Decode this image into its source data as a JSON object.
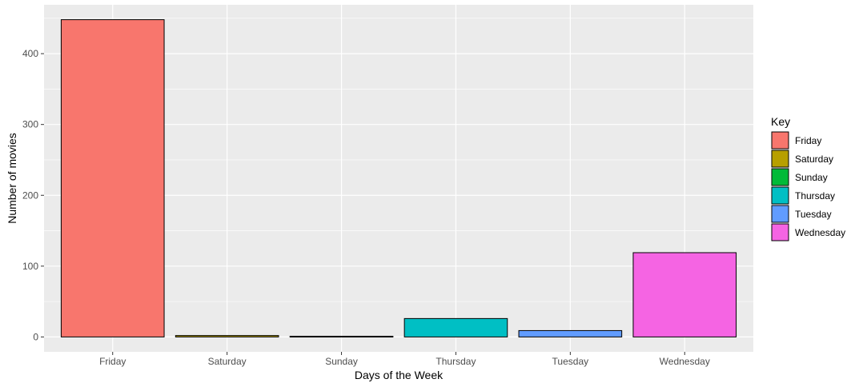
{
  "chart_data": {
    "type": "bar",
    "xlabel": "Days of the Week",
    "ylabel": "Number of movies",
    "categories": [
      "Friday",
      "Saturday",
      "Sunday",
      "Thursday",
      "Tuesday",
      "Wednesday"
    ],
    "values": [
      448,
      2,
      1,
      26,
      9,
      119
    ],
    "colors": [
      "#F8766D",
      "#B79F00",
      "#00BA38",
      "#00BFC4",
      "#619CFF",
      "#F564E3"
    ],
    "ylim": [
      -21,
      469
    ],
    "yticks": [
      0,
      100,
      200,
      300,
      400
    ],
    "grid": true,
    "panel_background": "#EBEBEB",
    "legend": {
      "title": "Key",
      "position": "right",
      "entries": [
        "Friday",
        "Saturday",
        "Sunday",
        "Thursday",
        "Tuesday",
        "Wednesday"
      ]
    }
  }
}
